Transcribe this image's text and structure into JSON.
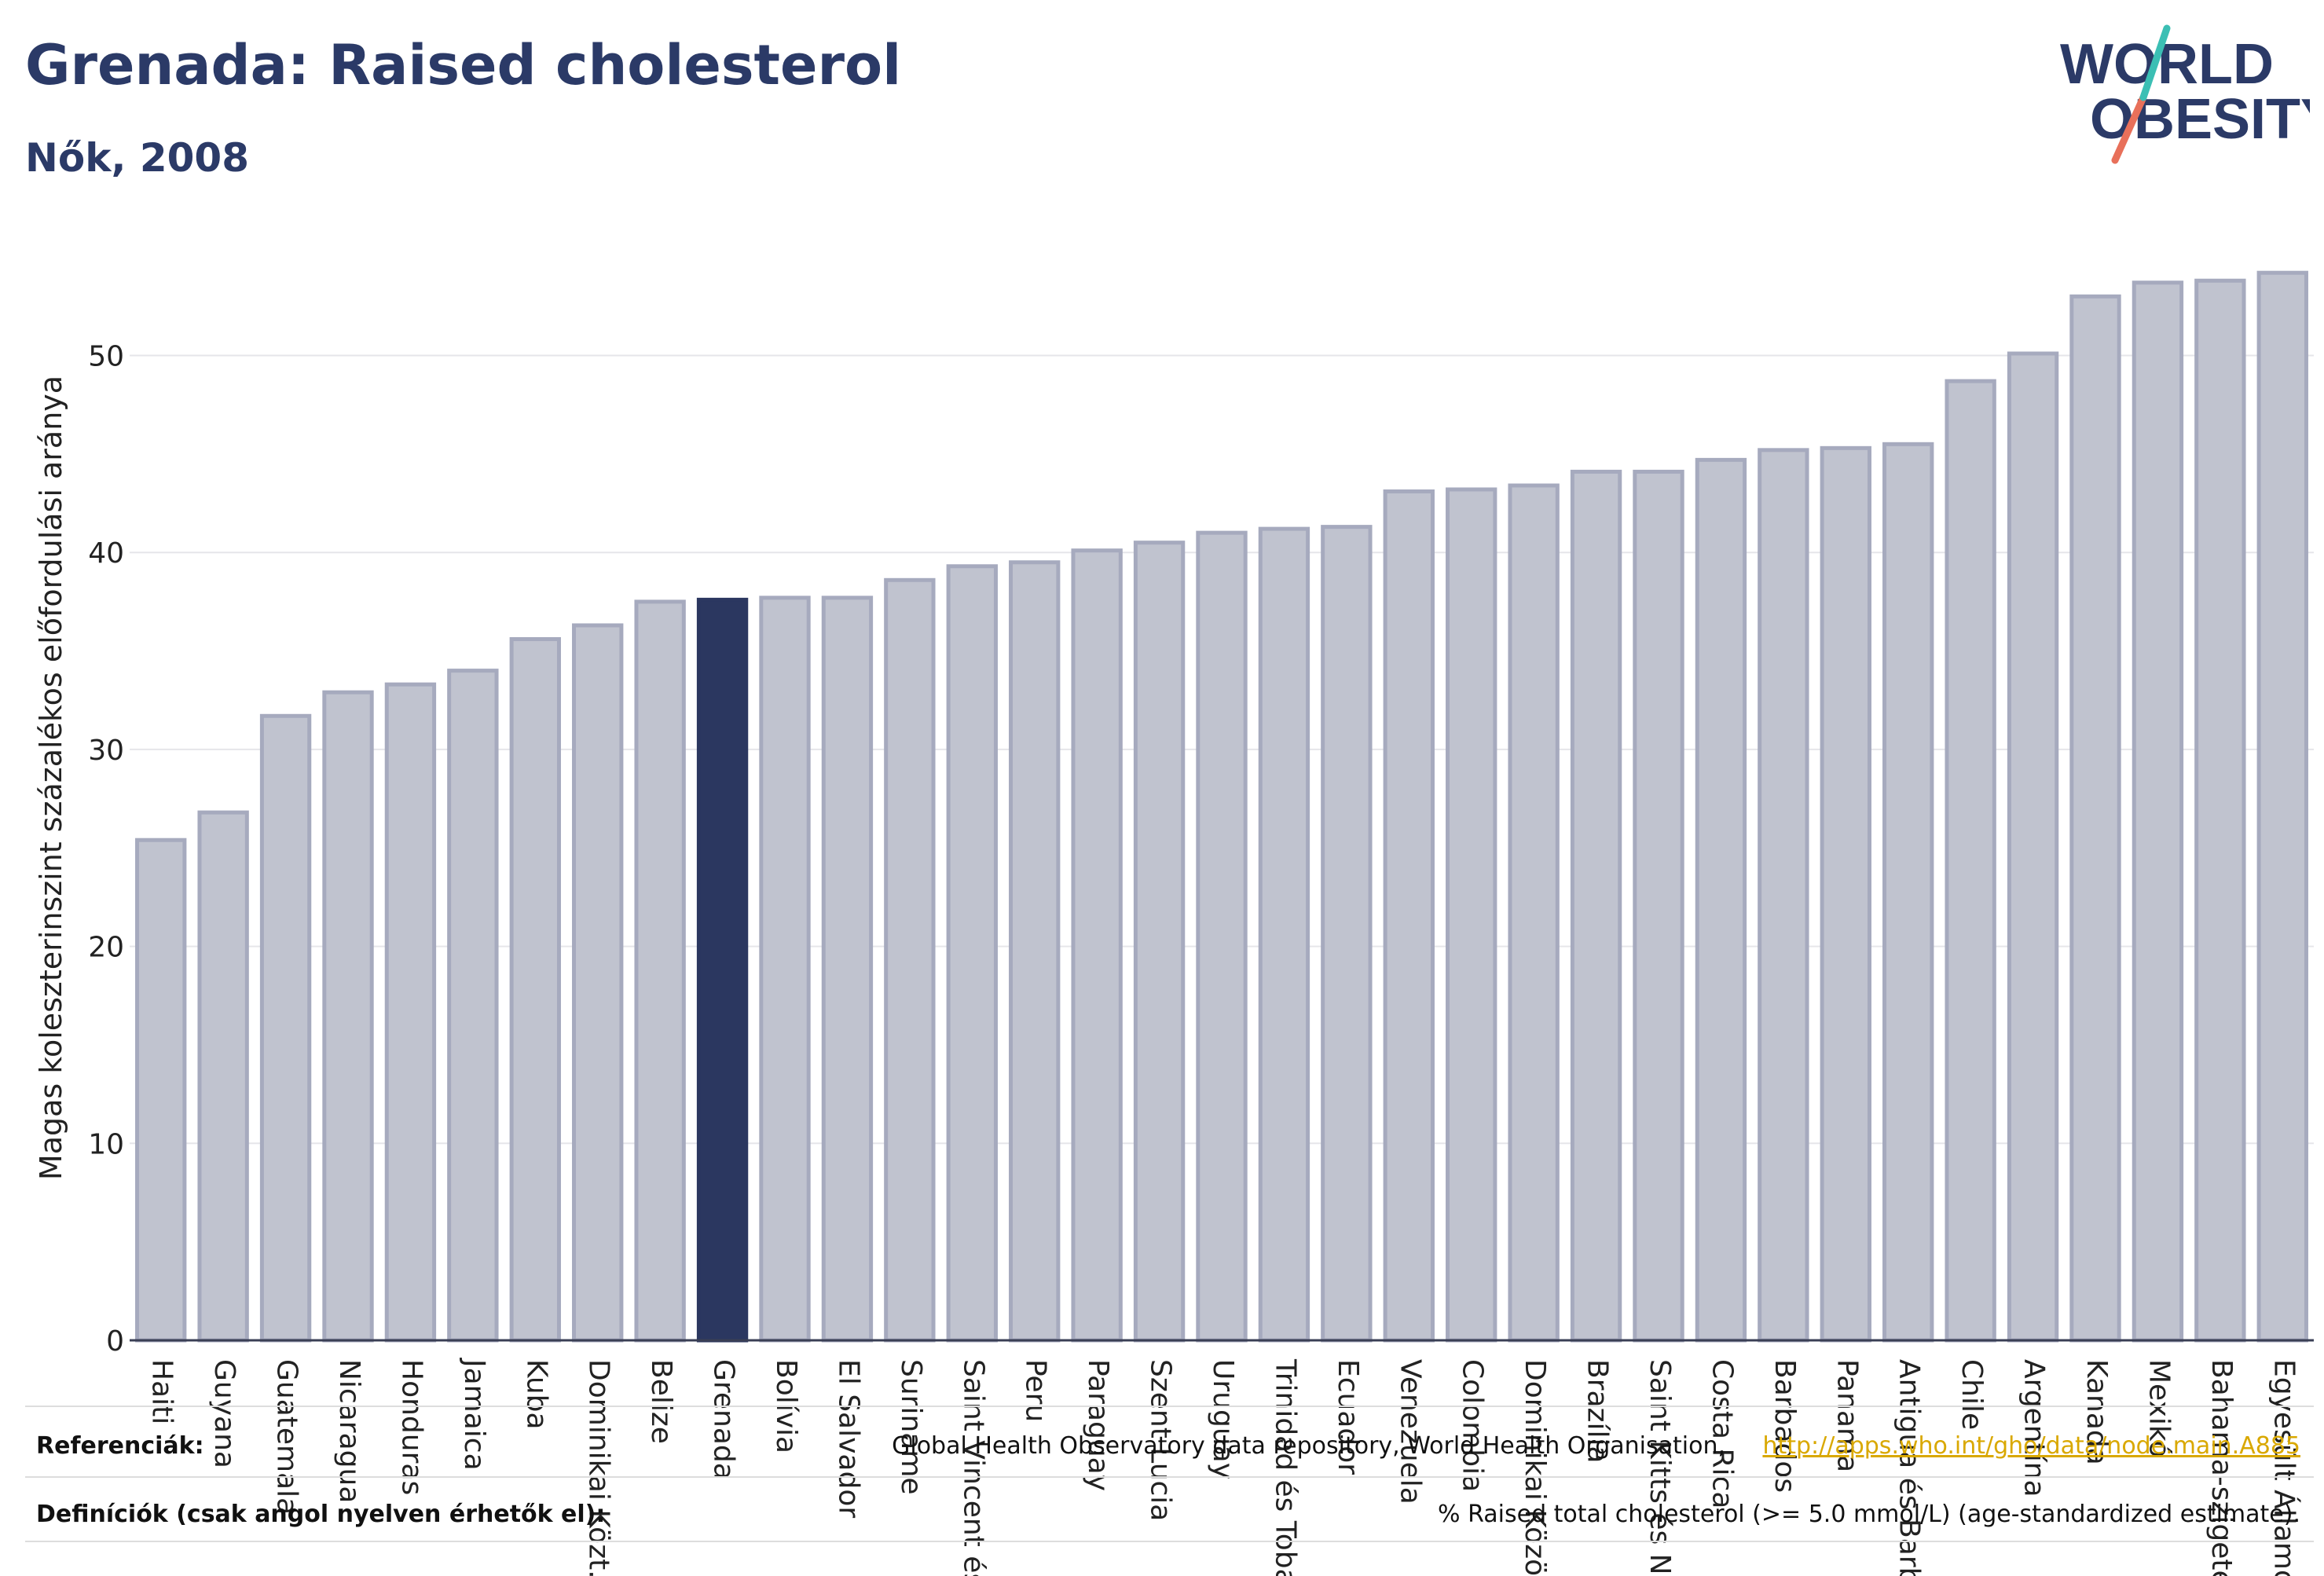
{
  "title": "Grenada: Raised cholesterol",
  "subtitle": "Nők, 2008",
  "logo": {
    "line1": "WORLD",
    "line2": "OBESITY",
    "text_color": "#2b3a67",
    "slash_colors": [
      "#e8705a",
      "#3bbfb4"
    ]
  },
  "colors": {
    "bar": "#c0c3cf",
    "bar_stroke": "#a6aabe",
    "highlight": "#2b3760",
    "grid": "#e6e6ea",
    "axis_text": "#222222"
  },
  "chart_data": {
    "type": "bar",
    "title": "Grenada: Raised cholesterol",
    "ylabel": "Magas koleszterinszint százalékos előfordulási aránya",
    "xlabel": "",
    "ylim": [
      0,
      55
    ],
    "yticks": [
      0,
      10,
      20,
      30,
      40,
      50
    ],
    "grid": true,
    "highlight_category": "Grenada",
    "categories": [
      "Haiti",
      "Guyana",
      "Guatemala",
      "Nicaragua",
      "Honduras",
      "Jamaica",
      "Kuba",
      "Dominikai Közt.",
      "Belize",
      "Grenada",
      "Bolívia",
      "El Salvador",
      "Suriname",
      "Saint Vincent és",
      "Peru",
      "Paraguay",
      "Szent Lucia",
      "Uruguay",
      "Trinidad és Tobago",
      "Ecuador",
      "Venezuela",
      "Colombia",
      "Dominikai Közöss.",
      "Brazília",
      "Saint Kitts és Nevis",
      "Costa Rica",
      "Barbados",
      "Panama",
      "Antigua és Barbuda",
      "Chile",
      "Argentína",
      "Kanada",
      "Mexikó",
      "Bahama-szigetek",
      "Egyesült Államok"
    ],
    "values": [
      25.4,
      26.8,
      31.7,
      32.9,
      33.3,
      34.0,
      35.6,
      36.3,
      37.5,
      37.6,
      37.7,
      37.7,
      38.6,
      39.3,
      39.5,
      40.1,
      40.5,
      41.0,
      41.2,
      41.3,
      43.1,
      43.2,
      43.4,
      44.1,
      44.1,
      44.7,
      45.2,
      45.3,
      45.5,
      48.7,
      50.1,
      53.0,
      53.7,
      53.8,
      54.2
    ]
  },
  "footer": {
    "references_label": "Referenciák:",
    "references_text": "Global Health Observatory data repository, World Health Organisation,",
    "references_link": "http://apps.who.int/gho/data/node.main.A885",
    "definitions_label": "Definíciók (csak angol nyelven érhetők el):",
    "definitions_text": "% Raised total cholesterol (>= 5.0 mmol/L) (age-standardized estimate)."
  }
}
